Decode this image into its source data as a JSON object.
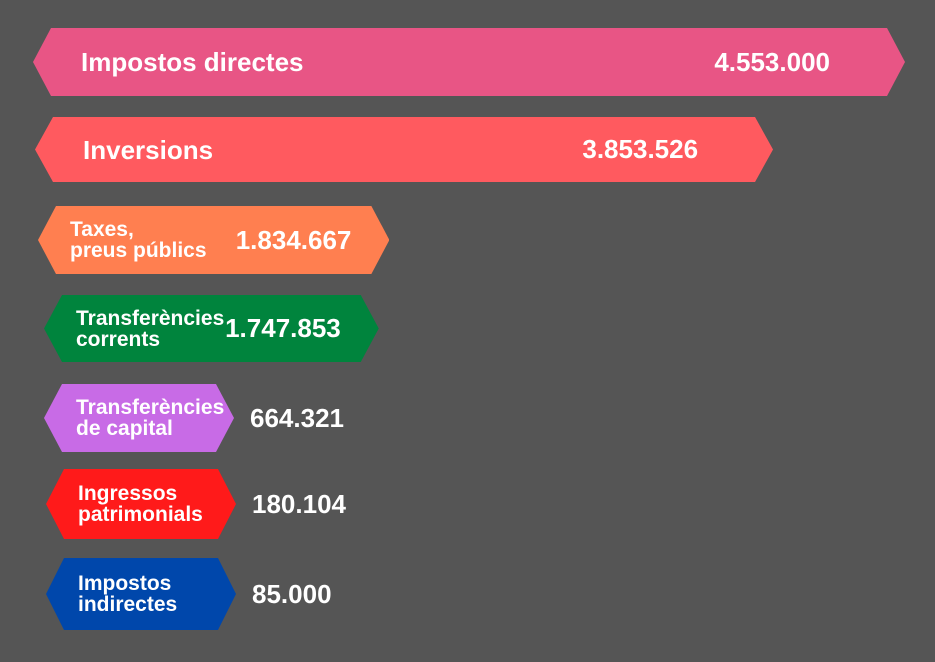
{
  "chart_data": {
    "type": "bar",
    "orientation": "horizontal",
    "categories": [
      "Impostos directes",
      "Inversions",
      "Taxes,\npreus públics",
      "Transferències\ncorrents",
      "Transferències\nde capital",
      "Ingressos\npatrimonials",
      "Impostos\nindirectes"
    ],
    "values": [
      4553000,
      3853526,
      1834667,
      1747853,
      664321,
      180104,
      85000
    ],
    "value_labels": [
      "4.553.000",
      "3.853.526",
      "1.834.667",
      "1.747.853",
      "664.321",
      "180.104",
      "85.000"
    ],
    "colors": [
      "#E85585",
      "#FF5A5F",
      "#FF7F50",
      "#00843D",
      "#C86BE6",
      "#FF1A1A",
      "#0047AB"
    ],
    "title": "",
    "xlabel": "",
    "ylabel": "",
    "grid": false,
    "legend": "none"
  }
}
